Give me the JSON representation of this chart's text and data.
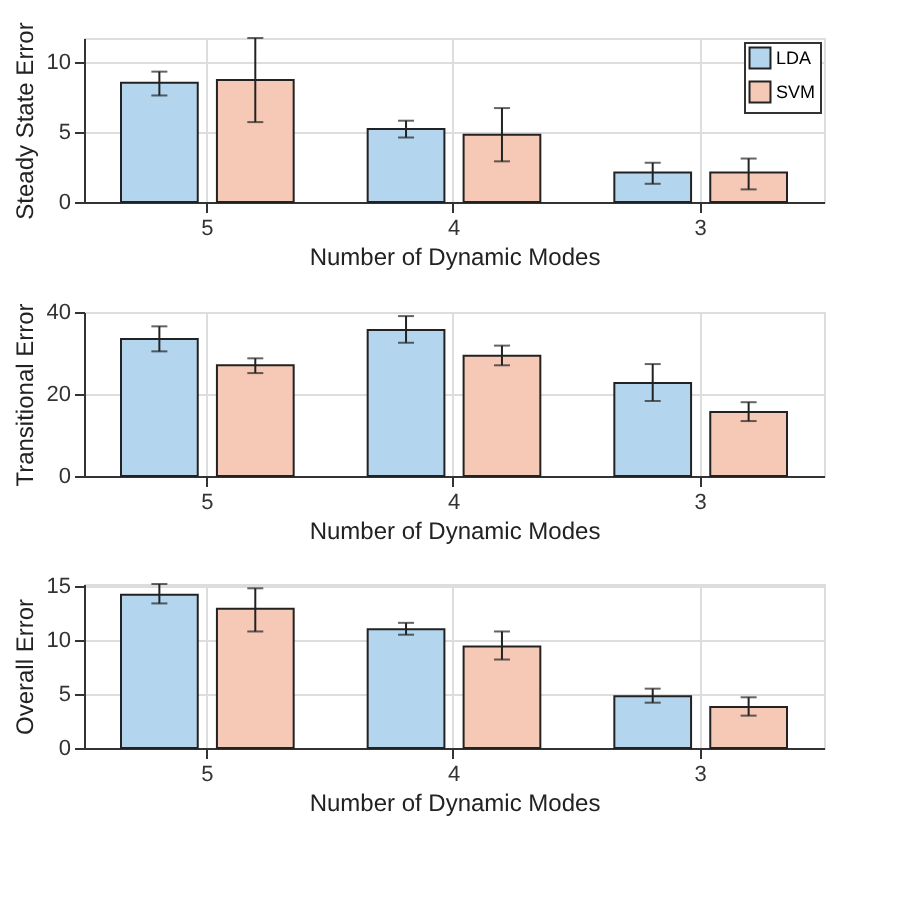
{
  "chart_data": [
    {
      "type": "bar",
      "xlabel": "Number of Dynamic Modes",
      "ylabel": "Steady State Error",
      "categories": [
        "5",
        "4",
        "3"
      ],
      "ylim": [
        0,
        11.7
      ],
      "yticks": [
        0,
        5,
        10
      ],
      "grid": true,
      "legend": "top right",
      "series": [
        {
          "name": "LDA",
          "color": "#b3d5ee",
          "values": [
            8.5,
            5.2,
            2.1
          ],
          "errors": [
            [
              7.6,
              9.3
            ],
            [
              4.6,
              5.8
            ],
            [
              1.3,
              2.8
            ]
          ]
        },
        {
          "name": "SVM",
          "color": "#f5c9b6",
          "values": [
            8.7,
            4.8,
            2.1
          ],
          "errors": [
            [
              5.7,
              11.7
            ],
            [
              2.9,
              6.7
            ],
            [
              0.9,
              3.1
            ]
          ]
        }
      ]
    },
    {
      "type": "bar",
      "xlabel": "Number of Dynamic Modes",
      "ylabel": "Transitional Error",
      "categories": [
        "5",
        "4",
        "3"
      ],
      "ylim": [
        0,
        40
      ],
      "yticks": [
        0,
        20,
        40
      ],
      "grid": true,
      "series": [
        {
          "color": "#b3d5ee",
          "values": [
            33.4,
            35.6,
            22.7
          ],
          "errors": [
            [
              30.4,
              36.5
            ],
            [
              32.5,
              39.0
            ],
            [
              18.3,
              27.3
            ]
          ]
        },
        {
          "color": "#f5c9b6",
          "values": [
            27.0,
            29.3,
            15.6
          ],
          "errors": [
            [
              25.1,
              28.7
            ],
            [
              27.0,
              31.8
            ],
            [
              13.4,
              18.0
            ]
          ]
        }
      ]
    },
    {
      "type": "bar",
      "xlabel": "Number of Dynamic Modes",
      "ylabel": "Overall Error",
      "categories": [
        "5",
        "4",
        "3"
      ],
      "ylim": [
        0,
        15.2
      ],
      "yticks": [
        0,
        5,
        10,
        15
      ],
      "grid": true,
      "series": [
        {
          "color": "#b3d5ee",
          "values": [
            14.2,
            11.0,
            4.8
          ],
          "errors": [
            [
              13.4,
              15.2
            ],
            [
              10.5,
              11.6
            ],
            [
              4.2,
              5.5
            ]
          ]
        },
        {
          "color": "#f5c9b6",
          "values": [
            12.9,
            9.4,
            3.8
          ],
          "errors": [
            [
              10.8,
              14.8
            ],
            [
              8.2,
              10.8
            ],
            [
              3.0,
              4.7
            ]
          ]
        }
      ]
    }
  ]
}
